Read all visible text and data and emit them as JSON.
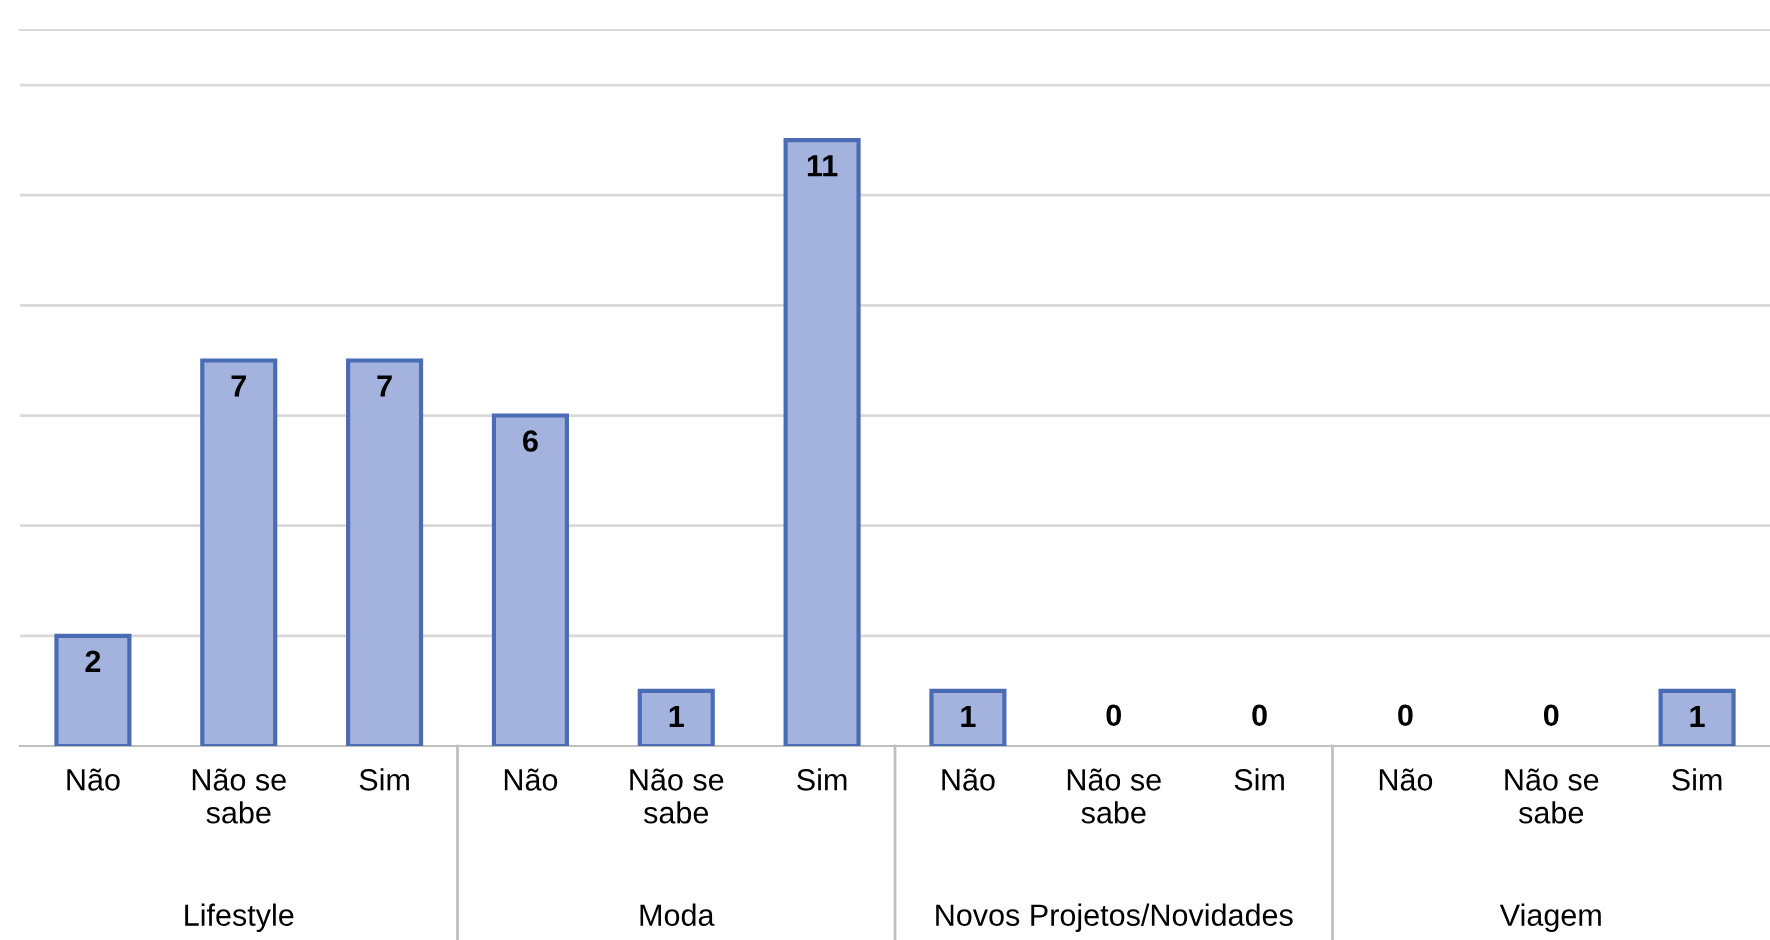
{
  "chart_data": {
    "type": "bar",
    "categories": [
      "Não",
      "Não se\nsabe",
      "Sim",
      "Não",
      "Não se\nsabe",
      "Sim",
      "Não",
      "Não se\nsabe",
      "Sim",
      "Não",
      "Não se\nsabe",
      "Sim"
    ],
    "values": [
      2,
      7,
      7,
      6,
      1,
      11,
      1,
      0,
      0,
      0,
      0,
      1
    ],
    "color": "#a3b3dd",
    "ylim": [
      0,
      13
    ],
    "yticks": [
      {
        "value": 2,
        "label": null
      },
      {
        "value": 4,
        "label": null
      },
      {
        "value": 6,
        "label": null
      },
      {
        "value": 8,
        "label": null
      },
      {
        "value": 10,
        "label": null
      },
      {
        "value": 12,
        "label": null
      }
    ],
    "tick_labels": "x",
    "grid": "y",
    "data_labels": true,
    "annotations": [
      "Lifestyle",
      "Moda",
      "Novos Projetos/Novidades",
      "Viagem"
    ]
  }
}
